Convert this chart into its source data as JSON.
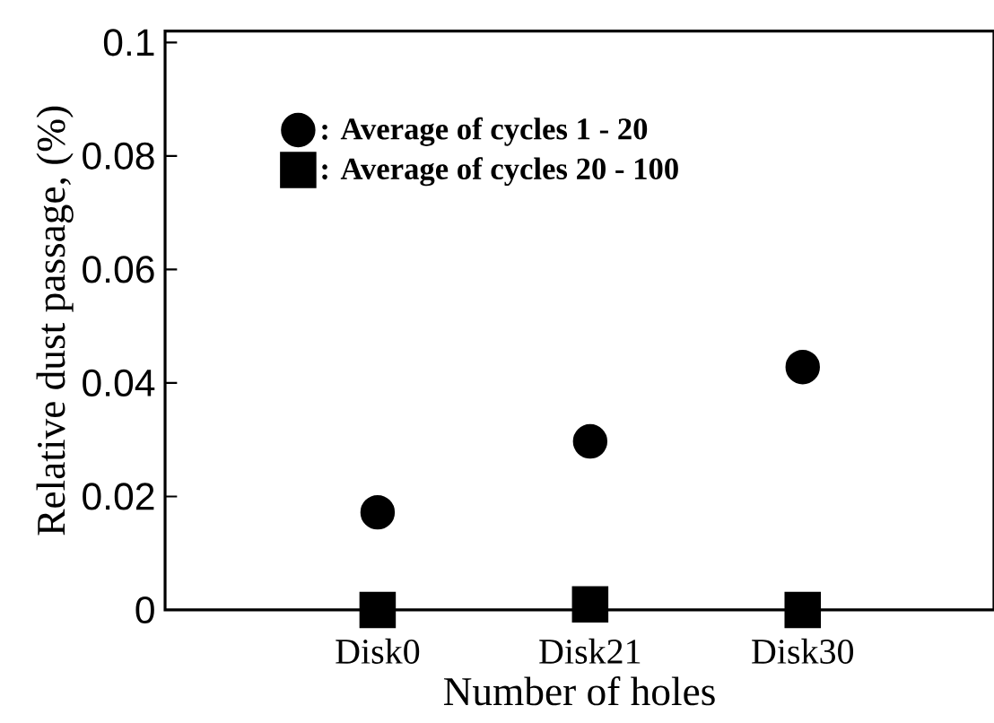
{
  "chart_data": {
    "type": "scatter",
    "xlabel": "Number of holes",
    "ylabel": "Relative dust passage, (%)",
    "categories": [
      "Disk0",
      "Disk21",
      "Disk30"
    ],
    "series": [
      {
        "name": ": Average of cycles 1 - 20",
        "color": "#000000",
        "marker": "circle",
        "values": [
          0.0172,
          0.0297,
          0.0428
        ]
      },
      {
        "name": ": Average of cycles 20 - 100",
        "color": "#000000",
        "marker": "square",
        "values": [
          0,
          0.001,
          0
        ]
      }
    ],
    "ylim": [
      0,
      0.102
    ],
    "yticks": [
      0,
      0.02,
      0.04,
      0.06,
      0.08,
      0.1
    ],
    "legend": "top left",
    "grid": false
  }
}
